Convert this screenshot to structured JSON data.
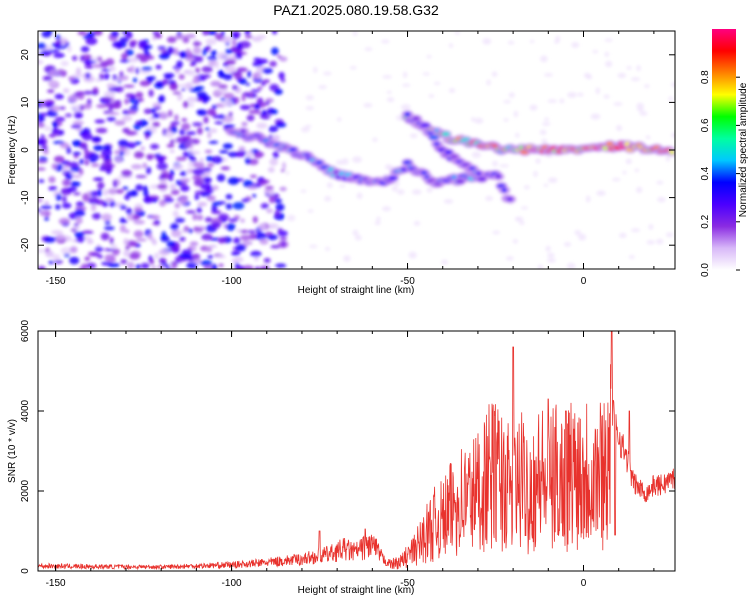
{
  "title": "PAZ1.2025.080.19.58.G32",
  "chart_data": [
    {
      "type": "heatmap",
      "xlabel": "Height of straight line (km)",
      "ylabel": "Frequency (Hz)",
      "xlim": [
        -155,
        26
      ],
      "ylim": [
        -25,
        25
      ],
      "xticks": [
        -150,
        -100,
        -50,
        0
      ],
      "yticks": [
        -20,
        -10,
        0,
        10,
        20
      ],
      "colorbar": {
        "label": "Normalized spectral amplitude",
        "range": [
          0,
          1
        ],
        "ticks": [
          "0.0",
          "0.2",
          "0.4",
          "0.6",
          "0.8"
        ],
        "colormap": [
          "#ffffff",
          "#d8b8f8",
          "#8a2be2",
          "#4b00ff",
          "#0000ff",
          "#00c8ff",
          "#00ffa0",
          "#00ff00",
          "#ffff00",
          "#ff8000",
          "#ff0000",
          "#ff0080"
        ]
      },
      "features": [
        {
          "name": "noise",
          "x": [
            -155,
            -85
          ],
          "y": [
            -25,
            25
          ],
          "amp": 0.2
        },
        {
          "name": "track-lower",
          "points": [
            [
              -100,
              4
            ],
            [
              -90,
              2
            ],
            [
              -80,
              -1
            ],
            [
              -70,
              -5
            ],
            [
              -60,
              -7
            ],
            [
              -55,
              -6
            ],
            [
              -50,
              -3
            ],
            [
              -42,
              -7
            ],
            [
              -35,
              -6
            ],
            [
              -25,
              -5
            ],
            [
              -20,
              -12
            ]
          ],
          "amp": 0.45
        },
        {
          "name": "track-upper",
          "points": [
            [
              -50,
              7
            ],
            [
              -40,
              3
            ],
            [
              -30,
              1
            ],
            [
              -20,
              0
            ],
            [
              -10,
              0
            ],
            [
              0,
              0
            ],
            [
              10,
              1
            ],
            [
              20,
              0
            ],
            [
              26,
              0
            ]
          ],
          "amp": 0.9
        },
        {
          "name": "track-branch",
          "points": [
            [
              -50,
              7
            ],
            [
              -45,
              5
            ],
            [
              -40,
              0
            ],
            [
              -35,
              -3
            ],
            [
              -28,
              -6
            ]
          ],
          "amp": 0.4
        }
      ]
    },
    {
      "type": "line",
      "xlabel": "Height of straight line (km)",
      "ylabel": "SNR (10 * v/v)",
      "xlim": [
        -155,
        26
      ],
      "ylim": [
        0,
        6000
      ],
      "xticks": [
        -150,
        -100,
        -50,
        0
      ],
      "yticks": [
        0,
        2000,
        4000,
        6000
      ],
      "color": "#e8322d",
      "series": [
        {
          "x": [
            -155,
            -140,
            -120,
            -100,
            -90,
            -80,
            -72,
            -68,
            -65,
            -60,
            -57,
            -55,
            -52,
            -48,
            -45,
            -42,
            -40,
            -38,
            -35,
            -32,
            -30,
            -28,
            -25,
            -22,
            -20,
            -18,
            -15,
            -12,
            -10,
            -8,
            -5,
            -3,
            0,
            3,
            5,
            7,
            9,
            10,
            11,
            12,
            13,
            14,
            16,
            18,
            20,
            22,
            24,
            26
          ],
          "y": [
            150,
            130,
            120,
            180,
            250,
            350,
            500,
            650,
            550,
            800,
            350,
            220,
            300,
            700,
            1200,
            1600,
            1700,
            2000,
            2400,
            2500,
            2700,
            3000,
            3300,
            2800,
            2600,
            3000,
            2700,
            3200,
            2700,
            3200,
            3000,
            3400,
            3400,
            3300,
            3300,
            3800,
            4000,
            3500,
            3200,
            3000,
            2700,
            2300,
            2100,
            2000,
            2200,
            2200,
            2300,
            2400
          ]
        }
      ],
      "spikes": [
        [
          -75,
          1000
        ],
        [
          -62,
          1050
        ],
        [
          -20,
          5600
        ],
        [
          -10,
          4300
        ],
        [
          -5,
          4000
        ],
        [
          8,
          6000
        ],
        [
          9,
          4500
        ],
        [
          13,
          4000
        ],
        [
          9,
          900
        ]
      ]
    }
  ]
}
